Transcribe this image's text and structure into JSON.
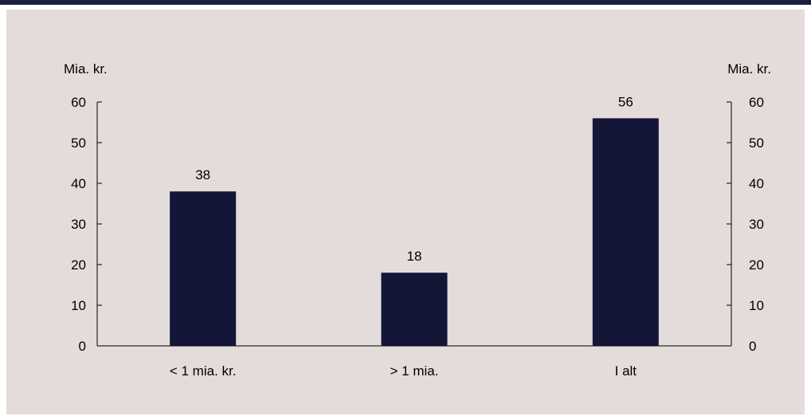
{
  "colors": {
    "top_bar": "#1a1f40",
    "background": "#e3dcda",
    "bar": "#141638",
    "axis": "#000000"
  },
  "chart_data": {
    "type": "bar",
    "categories": [
      "< 1 mia. kr.",
      "> 1 mia.",
      "I alt"
    ],
    "values": [
      38,
      18,
      56
    ],
    "data_labels": [
      "38",
      "18",
      "56"
    ],
    "left_unit": "Mia. kr.",
    "right_unit": "Mia. kr.",
    "ylim": [
      0,
      60
    ],
    "yticks": [
      0,
      10,
      20,
      30,
      40,
      50,
      60
    ],
    "grid": false,
    "legend": "none"
  }
}
